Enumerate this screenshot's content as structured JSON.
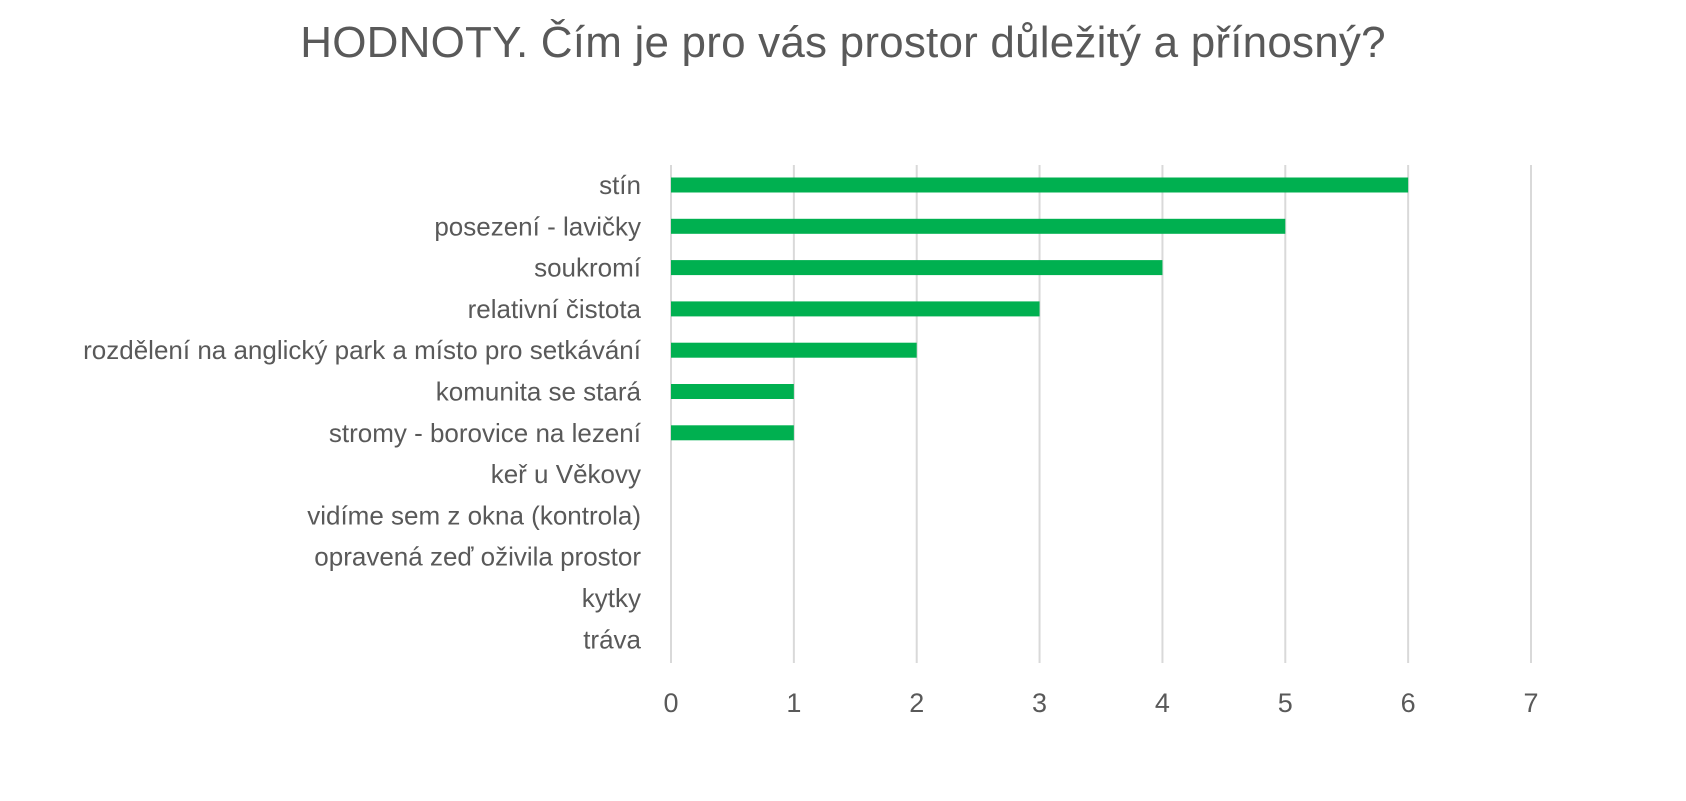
{
  "chart_data": {
    "type": "bar",
    "orientation": "horizontal",
    "title": "HODNOTY. Čím je pro vás prostor důležitý a přínosný?",
    "categories": [
      "stín",
      "posezení - lavičky",
      "soukromí",
      "relativní čistota",
      "rozdělení na anglický park a místo pro setkávání",
      "komunita se stará",
      "stromy - borovice na lezení",
      "keř u Věkovy",
      "vidíme sem z okna (kontrola)",
      "opravená zeď oživila prostor",
      "kytky",
      "tráva"
    ],
    "values": [
      6,
      5,
      4,
      3,
      2,
      1,
      1,
      0,
      0,
      0,
      0,
      0
    ],
    "xlim": [
      0,
      7
    ],
    "xticks": [
      "0",
      "1",
      "2",
      "3",
      "4",
      "5",
      "6",
      "7"
    ],
    "grid": true,
    "legend": "none",
    "bar_color": "#00B050",
    "grid_color": "#D9D9D9",
    "text_color": "#595959"
  }
}
